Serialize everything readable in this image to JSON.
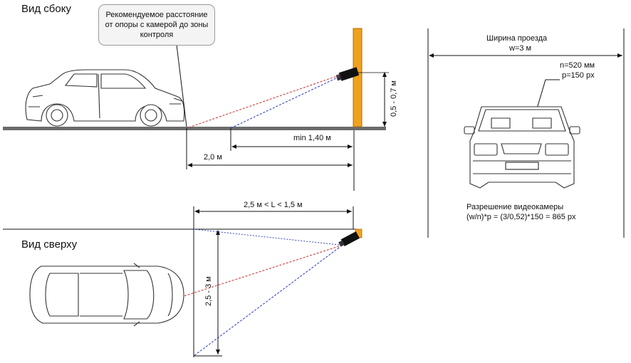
{
  "side_view": {
    "title": "Вид сбоку",
    "note": "Рекомендуемое расстояние от опоры с камерой до зоны контроля",
    "height_label": "0,5 - 0,7 м",
    "min_label": "min 1,40 м",
    "distance_label": "2,0 м"
  },
  "top_view": {
    "title": "Вид сверху",
    "range_label": "2,5 м < L < 1,5 м",
    "width_label": "2,5 - 3 м"
  },
  "front_view": {
    "width_title": "Ширина проезда",
    "width_value": "w=3 м",
    "plate_n": "n=520 мм",
    "plate_p": "p=150 px",
    "resolution_title": "Разрешение видеокамеры",
    "resolution_formula": "(w/n)*p = (3/0,52)*150 = 865 px"
  },
  "colors": {
    "pole": "#f0a21e",
    "pole_stroke": "#b36b00",
    "red_ray": "#d13b3b",
    "blue_ray": "#3446c8",
    "ground": "#6b6b6b"
  }
}
